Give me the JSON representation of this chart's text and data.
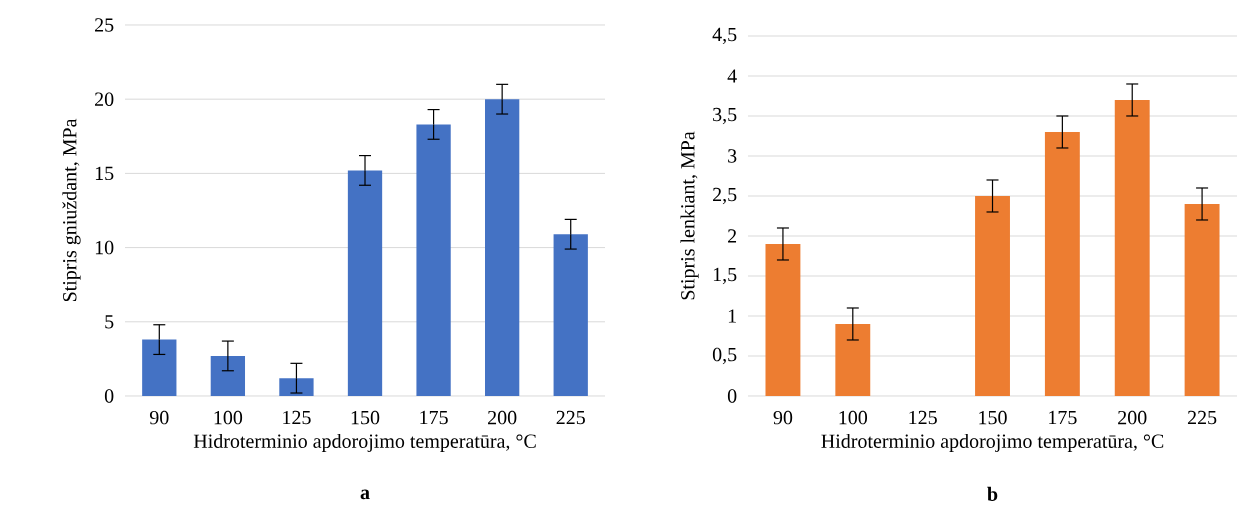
{
  "chart_data": [
    {
      "type": "bar",
      "title": "a",
      "xlabel": "Hidroterminio apdorojimo temperatūra, °C",
      "ylabel": "Stipris gniuždant, MPa",
      "categories": [
        "90",
        "100",
        "125",
        "150",
        "175",
        "200",
        "225"
      ],
      "series": [
        {
          "color": "#4472c4",
          "values": [
            3.8,
            2.7,
            1.2,
            15.2,
            18.3,
            20.0,
            10.9
          ],
          "errors": [
            1,
            1,
            1,
            1,
            1,
            1,
            1
          ]
        }
      ],
      "ylim": [
        0,
        25
      ],
      "yticks": [
        0,
        5,
        10,
        15,
        20,
        25
      ],
      "grid": "y"
    },
    {
      "type": "bar",
      "title": "b",
      "xlabel": "Hidroterminio apdorojimo temperatūra, °C",
      "ylabel": "Stipris lenkiant, MPa",
      "categories": [
        "90",
        "100",
        "125",
        "150",
        "175",
        "200",
        "225"
      ],
      "series": [
        {
          "color": "#ed7d31",
          "values": [
            1.9,
            0.9,
            null,
            2.5,
            3.3,
            3.7,
            2.4
          ],
          "errors": [
            0.2,
            0.2,
            null,
            0.2,
            0.2,
            0.2,
            0.2
          ]
        }
      ],
      "ylim": [
        0,
        4.5
      ],
      "yticks": [
        0,
        {
          "value": 0.5,
          "label": "0,5"
        },
        1,
        {
          "value": 1.5,
          "label": "1,5"
        },
        2,
        {
          "value": 2.5,
          "label": "2,5"
        },
        3,
        {
          "value": 3.5,
          "label": "3,5"
        },
        4,
        {
          "value": 4.5,
          "label": "4,5"
        }
      ],
      "grid": "y"
    }
  ]
}
